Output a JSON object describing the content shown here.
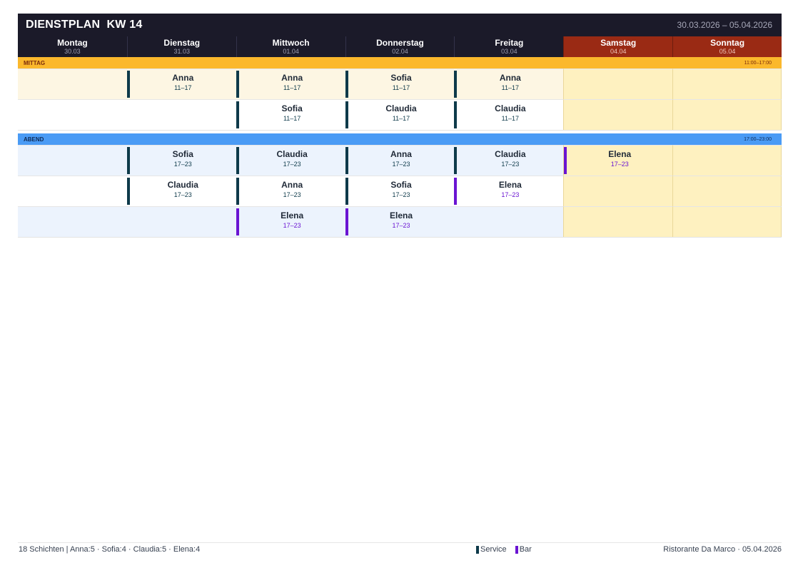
{
  "header": {
    "title": "DIENSTPLAN  KW 14",
    "date_range": "30.03.2026 – 05.04.2026"
  },
  "days": [
    {
      "name": "Montag",
      "date": "30.03",
      "weekend": false
    },
    {
      "name": "Dienstag",
      "date": "31.03",
      "weekend": false
    },
    {
      "name": "Mittwoch",
      "date": "01.04",
      "weekend": false
    },
    {
      "name": "Donnerstag",
      "date": "02.04",
      "weekend": false
    },
    {
      "name": "Freitag",
      "date": "03.04",
      "weekend": false
    },
    {
      "name": "Samstag",
      "date": "04.04",
      "weekend": true
    },
    {
      "name": "Sonntag",
      "date": "05.04",
      "weekend": true
    }
  ],
  "bands": {
    "mittag": {
      "label": "MITTAG",
      "time": "11:00–17:00"
    },
    "abend": {
      "label": "ABEND",
      "time": "17:00–23:00"
    }
  },
  "mittag_rows": [
    [
      null,
      {
        "name": "Anna",
        "time": "11–17",
        "role": "service"
      },
      {
        "name": "Anna",
        "time": "11–17",
        "role": "service"
      },
      {
        "name": "Sofia",
        "time": "11–17",
        "role": "service"
      },
      {
        "name": "Anna",
        "time": "11–17",
        "role": "service"
      },
      null,
      null
    ],
    [
      null,
      null,
      {
        "name": "Sofia",
        "time": "11–17",
        "role": "service"
      },
      {
        "name": "Claudia",
        "time": "11–17",
        "role": "service"
      },
      {
        "name": "Claudia",
        "time": "11–17",
        "role": "service"
      },
      null,
      null
    ]
  ],
  "abend_rows": [
    [
      null,
      {
        "name": "Sofia",
        "time": "17–23",
        "role": "service"
      },
      {
        "name": "Claudia",
        "time": "17–23",
        "role": "service"
      },
      {
        "name": "Anna",
        "time": "17–23",
        "role": "service"
      },
      {
        "name": "Claudia",
        "time": "17–23",
        "role": "service"
      },
      {
        "name": "Elena",
        "time": "17–23",
        "role": "bar"
      },
      null
    ],
    [
      null,
      {
        "name": "Claudia",
        "time": "17–23",
        "role": "service"
      },
      {
        "name": "Anna",
        "time": "17–23",
        "role": "service"
      },
      {
        "name": "Sofia",
        "time": "17–23",
        "role": "service"
      },
      {
        "name": "Elena",
        "time": "17–23",
        "role": "bar"
      },
      null,
      null
    ],
    [
      null,
      null,
      {
        "name": "Elena",
        "time": "17–23",
        "role": "bar"
      },
      {
        "name": "Elena",
        "time": "17–23",
        "role": "bar"
      },
      null,
      null,
      null
    ]
  ],
  "footer": {
    "summary": "18 Schichten  |  Anna:5 · Sofia:4 · Claudia:5 · Elena:4",
    "legend": [
      {
        "label": "Service",
        "color": "#0e3a4a"
      },
      {
        "label": "Bar",
        "color": "#6a14d2"
      }
    ],
    "imprint": "Ristorante Da Marco · 05.04.2026"
  },
  "colors": {
    "header_bg": "#1b1a29",
    "weekend_header": "#9a2a14",
    "mittag_band": "#fbb82c",
    "abend_band": "#4a9bf5",
    "weekend_cell": "#fef1c0",
    "service": "#0e3a4a",
    "bar": "#6a14d2"
  }
}
